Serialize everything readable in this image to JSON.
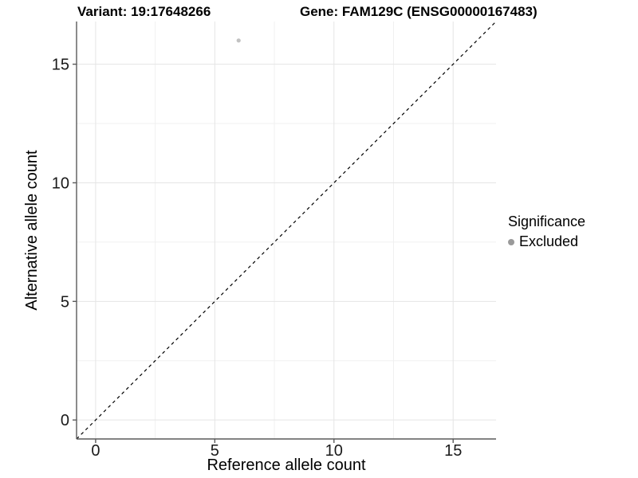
{
  "header": {
    "variant_title": "Variant: 19:17648266",
    "gene_title": "Gene: FAM129C (ENSG00000167483)"
  },
  "chart_data": {
    "type": "scatter",
    "xlabel": "Reference allele count",
    "ylabel": "Alternative allele count",
    "xlim": [
      -0.8,
      16.8
    ],
    "ylim": [
      -0.8,
      16.8
    ],
    "xticks": [
      0,
      5,
      10,
      15
    ],
    "yticks": [
      0,
      5,
      10,
      15
    ],
    "xtick_labels": [
      "0",
      "5",
      "10",
      "15"
    ],
    "ytick_labels": [
      "0",
      "5",
      "10",
      "15"
    ],
    "xticks_minor": [
      2.5,
      7.5,
      12.5
    ],
    "yticks_minor": [
      2.5,
      7.5,
      12.5
    ],
    "grid": true,
    "reference_line": {
      "type": "abline",
      "slope": 1,
      "intercept": 0,
      "style": "dashed",
      "color": "#000000"
    },
    "series": [
      {
        "name": "Excluded",
        "color": "#c2c2c2",
        "points": [
          [
            6,
            16
          ]
        ]
      }
    ],
    "legend": {
      "title": "Significance",
      "position": "right",
      "items": [
        {
          "label": "Excluded",
          "color": "#9a9a9a"
        }
      ]
    },
    "colors": {
      "grid_major": "#e5e5e5",
      "grid_minor": "#f0f0f0",
      "axis_line": "#5a5a5a",
      "tick_text": "#1a1a1a",
      "background": "#ffffff"
    }
  }
}
